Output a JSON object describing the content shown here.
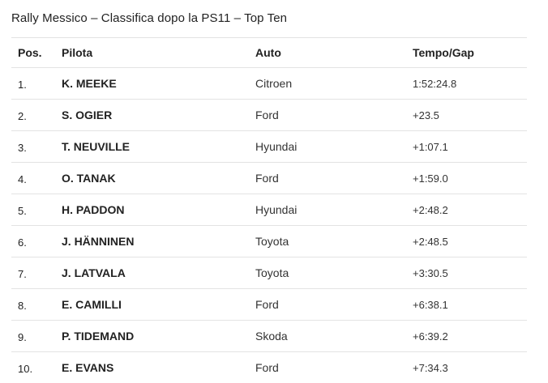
{
  "title": "Rally Messico – Classifica dopo la PS11 – Top Ten",
  "table": {
    "headers": {
      "pos": "Pos.",
      "pilot": "Pilota",
      "car": "Auto",
      "time": "Tempo/Gap"
    },
    "rows": [
      {
        "pos": "1.",
        "pilot": "K. MEEKE",
        "car": "Citroen",
        "time": "1:52:24.8"
      },
      {
        "pos": "2.",
        "pilot": "S. OGIER",
        "car": "Ford",
        "time": "+23.5"
      },
      {
        "pos": "3.",
        "pilot": "T. NEUVILLE",
        "car": "Hyundai",
        "time": "+1:07.1"
      },
      {
        "pos": "4.",
        "pilot": "O. TANAK",
        "car": "Ford",
        "time": "+1:59.0"
      },
      {
        "pos": "5.",
        "pilot": "H. PADDON",
        "car": "Hyundai",
        "time": "+2:48.2"
      },
      {
        "pos": "6.",
        "pilot": "J. HÄNNINEN",
        "car": "Toyota",
        "time": "+2:48.5"
      },
      {
        "pos": "7.",
        "pilot": "J. LATVALA",
        "car": "Toyota",
        "time": "+3:30.5"
      },
      {
        "pos": "8.",
        "pilot": "E. CAMILLI",
        "car": "Ford",
        "time": "+6:38.1"
      },
      {
        "pos": "9.",
        "pilot": "P. TIDEMAND",
        "car": "Skoda",
        "time": "+6:39.2"
      },
      {
        "pos": "10.",
        "pilot": "E. EVANS",
        "car": "Ford",
        "time": "+7:34.3"
      }
    ]
  }
}
